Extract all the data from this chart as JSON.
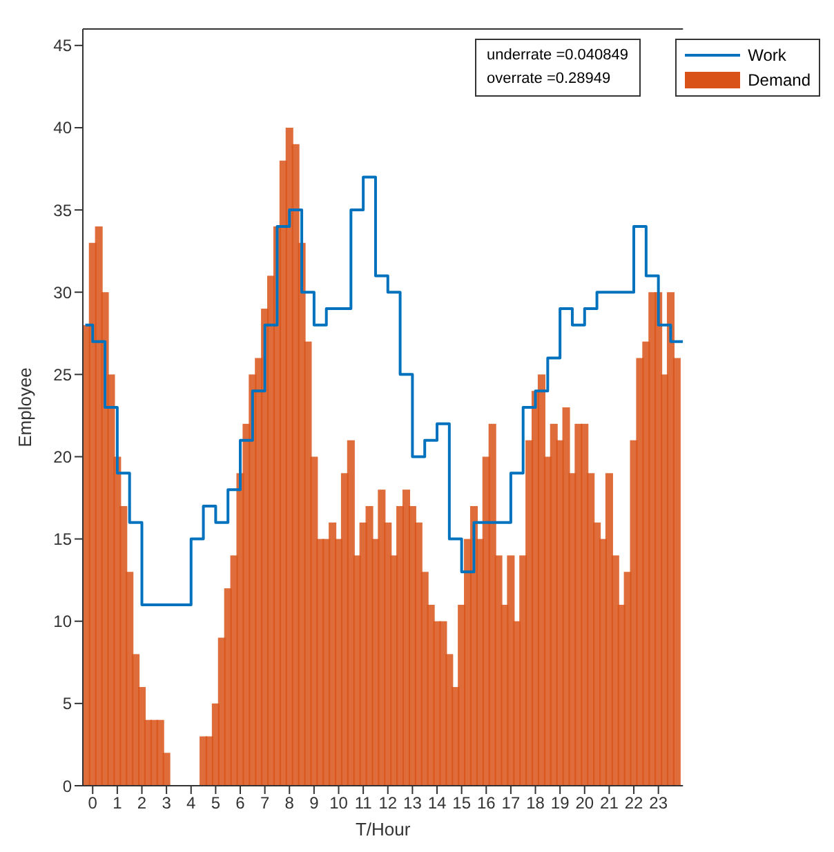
{
  "chart_data": {
    "type": "bar",
    "xlabel": "T/Hour",
    "ylabel": "Employee",
    "annotations": [
      "underrate =0.040849",
      "overrate =0.28949"
    ],
    "xlim": [
      -0.4,
      24
    ],
    "xticks": [
      0,
      1,
      2,
      3,
      4,
      5,
      6,
      7,
      8,
      9,
      10,
      11,
      12,
      13,
      14,
      15,
      16,
      17,
      18,
      19,
      20,
      21,
      22,
      23
    ],
    "ylim": [
      0,
      46
    ],
    "yticks": [
      0,
      5,
      10,
      15,
      20,
      25,
      30,
      35,
      40,
      45
    ],
    "legend": "top right",
    "series": [
      {
        "name": "Work",
        "type": "step",
        "color": "#0072bd",
        "x": [
          -0.3,
          0,
          0.5,
          1,
          1.5,
          2,
          2.5,
          3,
          3.5,
          4,
          4.5,
          5,
          5.5,
          6,
          6.5,
          7,
          7.5,
          8,
          8.5,
          9,
          9.5,
          10,
          10.5,
          11,
          11.5,
          12,
          12.5,
          13,
          13.5,
          14,
          14.5,
          15,
          15.5,
          16,
          16.5,
          17,
          17.5,
          18,
          18.5,
          19,
          19.5,
          20,
          20.5,
          21,
          21.5,
          22,
          22.5,
          23,
          23.5,
          24
        ],
        "values": [
          28,
          27,
          23,
          19,
          16,
          11,
          11,
          11,
          11,
          15,
          17,
          16,
          18,
          21,
          24,
          28,
          34,
          35,
          30,
          28,
          29,
          29,
          35,
          37,
          31,
          30,
          25,
          20,
          21,
          22,
          15,
          13,
          16,
          16,
          16,
          19,
          23,
          24,
          26,
          29,
          28,
          29,
          30,
          30,
          30,
          34,
          31,
          28,
          27,
          27
        ]
      },
      {
        "name": "Demand",
        "color": "#d95319",
        "x": [
          -0.25,
          0,
          0.25,
          0.5,
          0.75,
          1,
          1.25,
          1.5,
          1.75,
          2,
          2.25,
          2.5,
          2.75,
          3,
          3.25,
          3.5,
          3.75,
          4,
          4.25,
          4.5,
          4.75,
          5,
          5.25,
          5.5,
          5.75,
          6,
          6.25,
          6.5,
          6.75,
          7,
          7.25,
          7.5,
          7.75,
          8,
          8.25,
          8.5,
          8.75,
          9,
          9.25,
          9.5,
          9.75,
          10,
          10.25,
          10.5,
          10.75,
          11,
          11.25,
          11.5,
          11.75,
          12,
          12.25,
          12.5,
          12.75,
          13,
          13.25,
          13.5,
          13.75,
          14,
          14.25,
          14.5,
          14.75,
          15,
          15.25,
          15.5,
          15.75,
          16,
          16.25,
          16.5,
          16.75,
          17,
          17.25,
          17.5,
          17.75,
          18,
          18.25,
          18.5,
          18.75,
          19,
          19.25,
          19.5,
          19.75,
          20,
          20.25,
          20.5,
          20.75,
          21,
          21.25,
          21.5,
          21.75,
          22,
          22.25,
          22.5,
          22.75,
          23,
          23.25,
          23.5,
          23.75
        ],
        "values": [
          28,
          33,
          34,
          30,
          25,
          20,
          17,
          13,
          8,
          6,
          4,
          4,
          4,
          2,
          0,
          0,
          0,
          0,
          0,
          3,
          3,
          5,
          9,
          12,
          14,
          19,
          22,
          25,
          26,
          29,
          31,
          34,
          38,
          40,
          39,
          33,
          27,
          20,
          15,
          15,
          16,
          15,
          19,
          21,
          14,
          16,
          17,
          15,
          18,
          16,
          14,
          17,
          18,
          17,
          16,
          13,
          11,
          10,
          10,
          8,
          6,
          11,
          15,
          17,
          15,
          20,
          22,
          14,
          11,
          14,
          10,
          14,
          21,
          24,
          25,
          20,
          22,
          21,
          23,
          19,
          22,
          22,
          19,
          16,
          15,
          19,
          14,
          11,
          13,
          21,
          26,
          27,
          30,
          30,
          25,
          30,
          26
        ]
      }
    ]
  }
}
